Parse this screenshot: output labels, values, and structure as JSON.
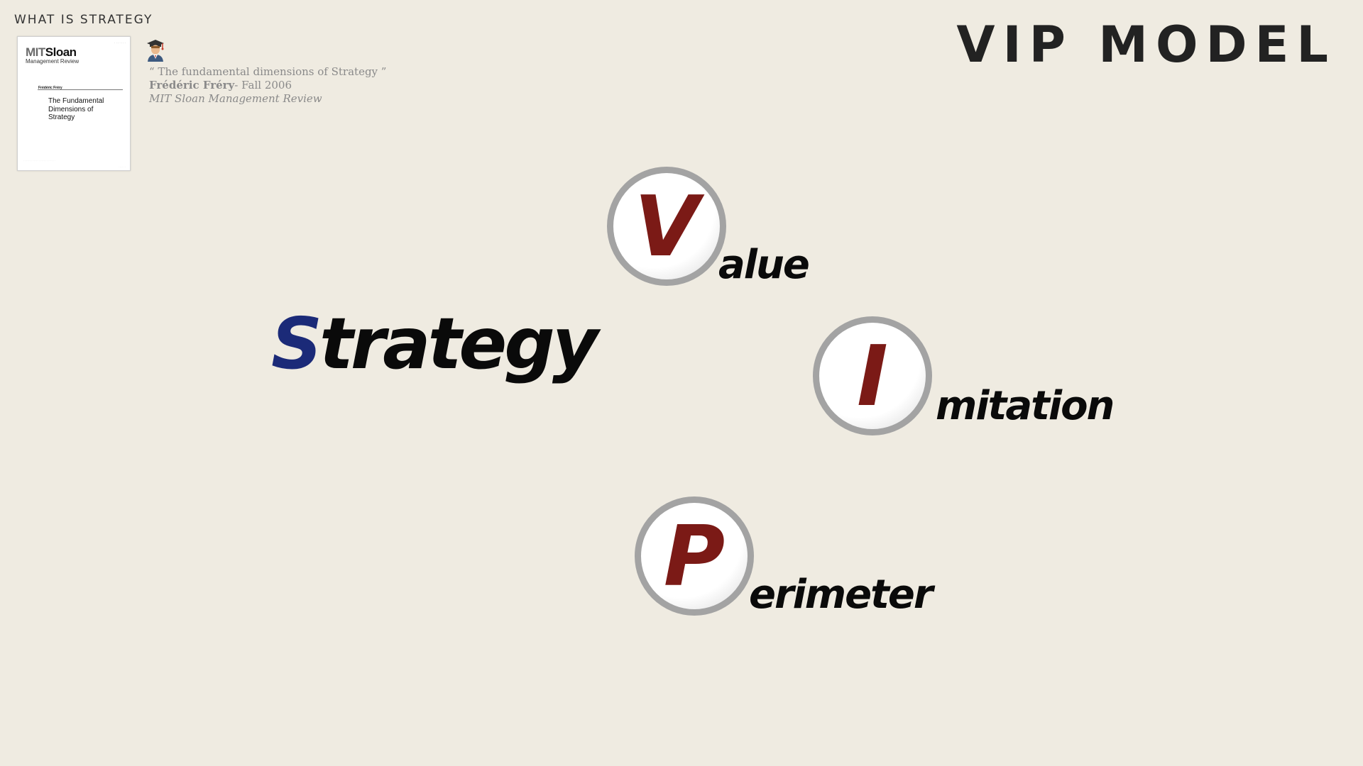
{
  "header": {
    "section_label": "WHAT IS STRATEGY",
    "title": "VIP MODEL"
  },
  "reference": {
    "thumbnail": {
      "brand_mit": "MIT",
      "brand_sloan": "Sloan",
      "brand_sub": "Management Review",
      "author": "Frédéric Fréry",
      "article_title": "The Fundamental Dimensions of Strategy"
    },
    "icon": "graduate-icon",
    "quote": "“ The fundamental dimensions of Strategy ”",
    "author": "Frédéric Fréry",
    "date": "- Fall 2006",
    "journal": "MIT Sloan Management Review"
  },
  "diagram": {
    "center_initial": "S",
    "center_rest": "trategy",
    "dimensions": [
      {
        "letter": "V",
        "rest": "alue"
      },
      {
        "letter": "I",
        "rest": "mitation"
      },
      {
        "letter": "P",
        "rest": "erimeter"
      }
    ],
    "colors": {
      "accent_letter": "#7b1a16",
      "initial_s": "#1b2a78",
      "ring": "#a3a3a3"
    }
  }
}
